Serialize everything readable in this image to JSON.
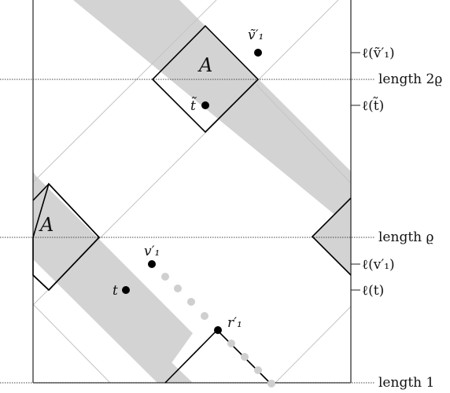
{
  "figure": {
    "region_label": "A",
    "points": {
      "v1_tilde": "ṽ′₁",
      "t_tilde": "t̃",
      "v1": "v′₁",
      "t": "t",
      "r1": "r′₁"
    },
    "right_labels": {
      "ell_v1_tilde": "ℓ(ṽ′₁)",
      "ell_t_tilde": "ℓ(t̃)",
      "ell_v1": "ℓ(v′₁)",
      "ell_t": "ℓ(t)"
    },
    "horizontal_lines": {
      "length_2rho": "length 2ϱ",
      "length_rho": "length ϱ",
      "length_1": "length 1"
    }
  }
}
